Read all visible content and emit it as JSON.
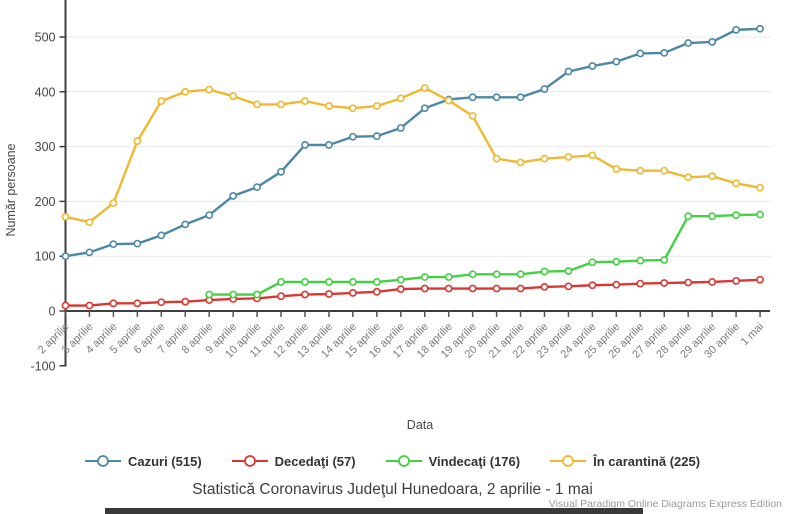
{
  "chart_data": {
    "type": "line",
    "title": "Statistică Coronavirus Judeţul Hunedoara, 2 aprilie - 1 mai",
    "xlabel": "Data",
    "ylabel": "Număr persoane",
    "ylim": [
      -100,
      570
    ],
    "yticks": [
      -100,
      0,
      100,
      200,
      300,
      400,
      500
    ],
    "grid": "horizontal-light",
    "legend_position": "bottom",
    "categories": [
      "2 aprilie",
      "3 aprilie",
      "4 aprilie",
      "5 aprilie",
      "6 aprilie",
      "7 aprilie",
      "8 aprilie",
      "9 aprilie",
      "10 aprilie",
      "11 aprilie",
      "12 aprilie",
      "13 aprilie",
      "14 aprilie",
      "15 aprilie",
      "16 aprilie",
      "17 aprilie",
      "18 aprilie",
      "19 aprilie",
      "20 aprilie",
      "21 aprilie",
      "22 aprilie",
      "23 aprilie",
      "24 aprilie",
      "25 aprilie",
      "26 aprilie",
      "27 aprilie",
      "28 aprilie",
      "29 aprilie",
      "30 aprilie",
      "1 mai"
    ],
    "series": [
      {
        "name": "Cazuri (515)",
        "color": "#4d87a6",
        "values": [
          100,
          107,
          122,
          123,
          138,
          158,
          175,
          210,
          226,
          254,
          303,
          303,
          318,
          319,
          334,
          370,
          386,
          390,
          390,
          390,
          405,
          437,
          447,
          455,
          470,
          471,
          489,
          491,
          513,
          515
        ]
      },
      {
        "name": "Decedaţi (57)",
        "color": "#d93732",
        "values": [
          10,
          10,
          14,
          14,
          16,
          17,
          20,
          22,
          23,
          27,
          30,
          31,
          33,
          35,
          40,
          41,
          41,
          41,
          41,
          41,
          44,
          45,
          47,
          48,
          50,
          51,
          52,
          53,
          55,
          57
        ]
      },
      {
        "name": "Vindecaţi (176)",
        "color": "#42d142",
        "values": [
          null,
          null,
          null,
          null,
          null,
          null,
          30,
          30,
          30,
          53,
          53,
          53,
          53,
          53,
          57,
          62,
          62,
          67,
          67,
          67,
          72,
          73,
          89,
          90,
          92,
          93,
          173,
          173,
          175,
          176
        ]
      },
      {
        "name": "În carantină (225)",
        "color": "#eeb930",
        "values": [
          172,
          162,
          197,
          310,
          383,
          400,
          404,
          392,
          377,
          377,
          383,
          374,
          370,
          374,
          388,
          407,
          384,
          356,
          278,
          271,
          278,
          281,
          284,
          259,
          256,
          256,
          244,
          246,
          233,
          225
        ]
      }
    ]
  },
  "watermark": "Visual Paradigm Online Diagrams Express Edition"
}
